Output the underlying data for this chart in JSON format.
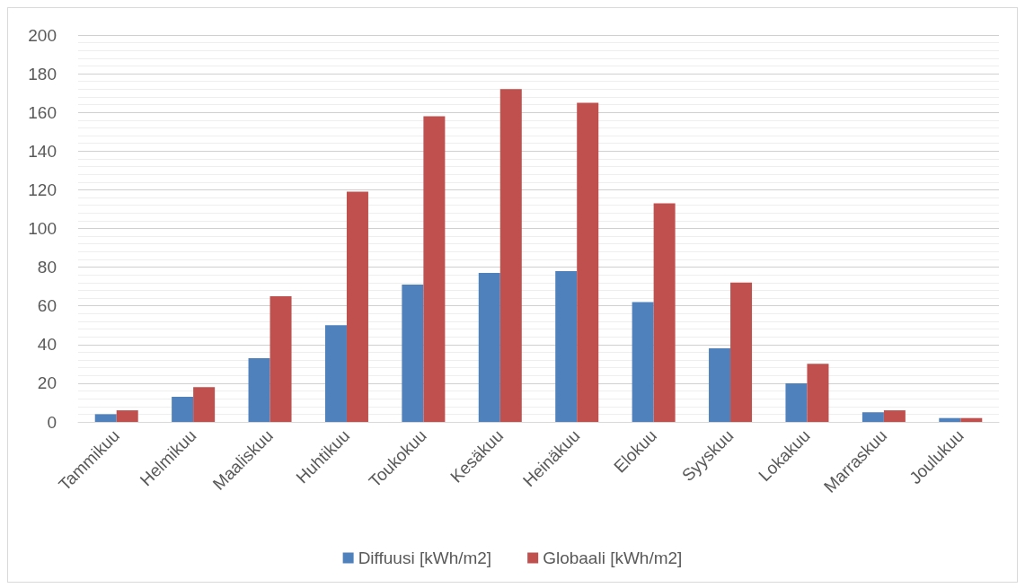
{
  "chart_data": {
    "type": "bar",
    "categories": [
      "Tammikuu",
      "Helmikuu",
      "Maaliskuu",
      "Huhtikuu",
      "Toukokuu",
      "Kesäkuu",
      "Heinäkuu",
      "Elokuu",
      "Syyskuu",
      "Lokakuu",
      "Marraskuu",
      "Joulukuu"
    ],
    "series": [
      {
        "name": "Diffuusi [kWh/m2]",
        "color": "#4f81bd",
        "values": [
          4,
          13,
          33,
          50,
          71,
          77,
          78,
          62,
          38,
          20,
          5,
          2
        ]
      },
      {
        "name": "Globaali [kWh/m2]",
        "color": "#c0504d",
        "values": [
          6,
          18,
          65,
          119,
          158,
          172,
          165,
          113,
          72,
          30,
          6,
          2
        ]
      }
    ],
    "ylim": [
      0,
      200
    ],
    "yticks": [
      0,
      20,
      40,
      60,
      80,
      100,
      120,
      140,
      160,
      180,
      200
    ],
    "grid": true,
    "legend": "bottom"
  }
}
